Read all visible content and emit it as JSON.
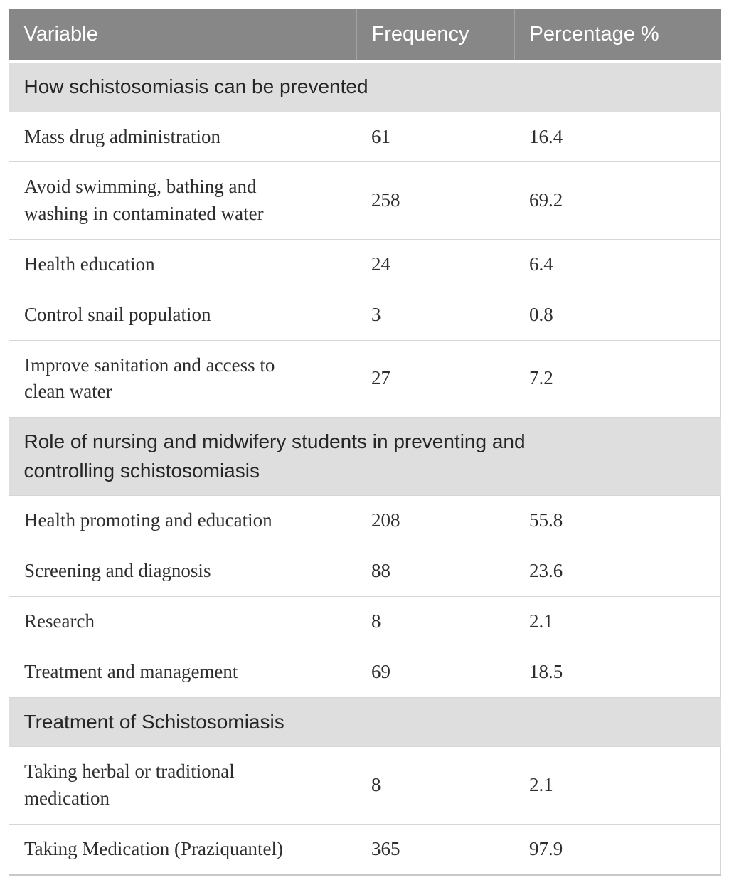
{
  "colors": {
    "header_bg": "#878787",
    "header_text": "#ffffff",
    "header_divider": "#a2a2a2",
    "section_bg": "#dedede",
    "section_text": "#262626",
    "body_text": "#2e2e2e",
    "grid_border": "#d6d6d6",
    "table_bottom_border": "#c9c9c9",
    "row_bg": "#ffffff"
  },
  "table": {
    "columns": [
      "Variable",
      "Frequency",
      "Percentage %"
    ],
    "sections": [
      {
        "title": "How schistosomiasis can be prevented",
        "rows": [
          {
            "variable": "Mass drug administration",
            "frequency": "61",
            "percentage": "16.4"
          },
          {
            "variable": "Avoid swimming, bathing and washing in contaminated water",
            "frequency": "258",
            "percentage": "69.2"
          },
          {
            "variable": "Health education",
            "frequency": "24",
            "percentage": "6.4"
          },
          {
            "variable": "Control snail population",
            "frequency": "3",
            "percentage": "0.8"
          },
          {
            "variable": "Improve sanitation and access to clean water",
            "frequency": "27",
            "percentage": "7.2"
          }
        ]
      },
      {
        "title": "Role of nursing and midwifery students in preventing and controlling schistosomiasis",
        "rows": [
          {
            "variable": "Health promoting and education",
            "frequency": "208",
            "percentage": "55.8"
          },
          {
            "variable": "Screening and diagnosis",
            "frequency": "88",
            "percentage": "23.6"
          },
          {
            "variable": "Research",
            "frequency": "8",
            "percentage": "2.1"
          },
          {
            "variable": "Treatment and management",
            "frequency": "69",
            "percentage": "18.5"
          }
        ]
      },
      {
        "title": "Treatment of Schistosomiasis",
        "rows": [
          {
            "variable": "Taking herbal or traditional medication",
            "frequency": "8",
            "percentage": "2.1"
          },
          {
            "variable": "Taking Medication (Praziquantel)",
            "frequency": "365",
            "percentage": "97.9"
          }
        ]
      }
    ]
  }
}
